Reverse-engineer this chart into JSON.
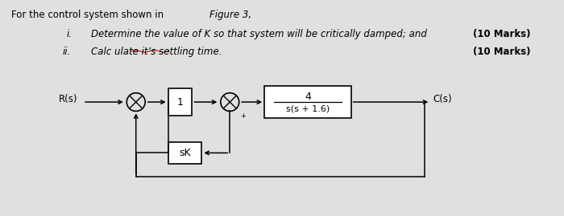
{
  "bg_color": "#e0e0e0",
  "box_color": "#ffffff",
  "line_color": "#000000",
  "text_color": "#000000",
  "title_normal": "For the control system shown in ",
  "title_italic": "Figure 3,",
  "item_i_label": "i.",
  "item_i_text": "Determine the value of K so that system will be critically damped; and ",
  "item_i_marks": "(10 Marks)",
  "item_ii_label": "ii.",
  "item_ii_text_a": "Calc ulate it’s settling time.",
  "item_ii_marks": "(10 Marks)",
  "Rs_label": "R(s)",
  "Cs_label": "C(s)",
  "block1_text": "1",
  "block2_num": "4",
  "block2_den": "s(s + 1.6)",
  "block3_text": "sK",
  "plus_sign": "+",
  "wavy_underline_color": "#cc0000"
}
